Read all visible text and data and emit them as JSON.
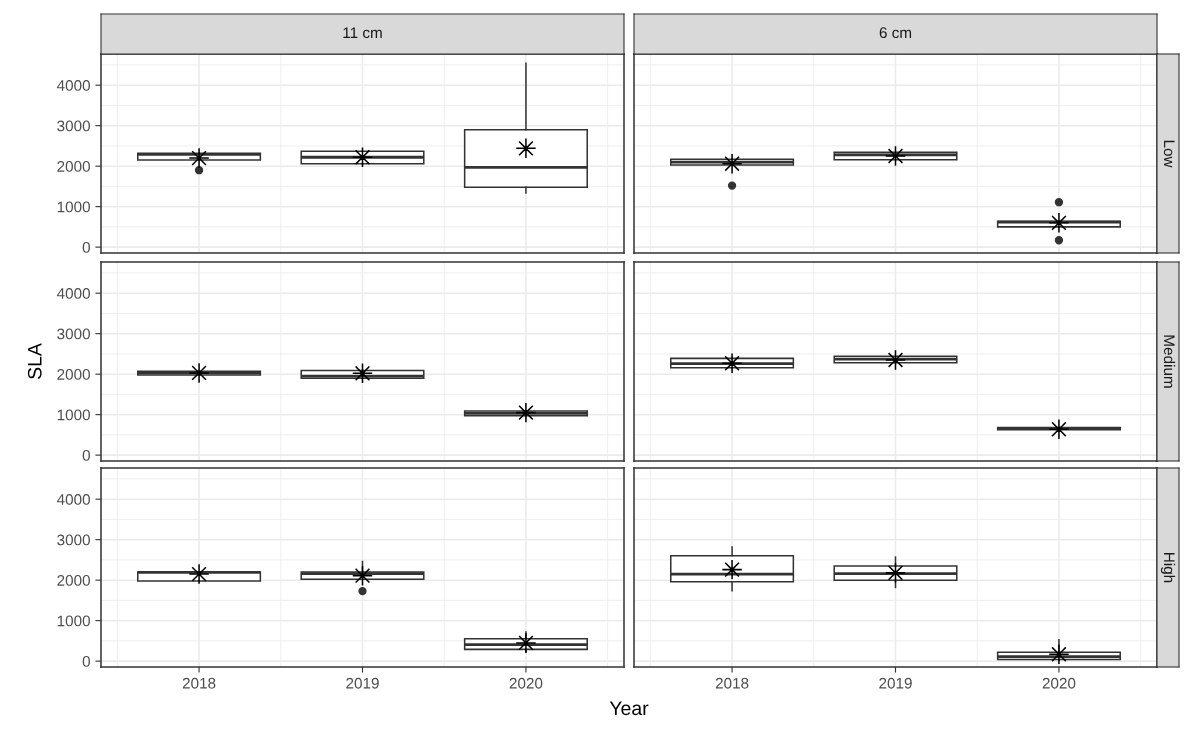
{
  "chart_data": [
    {
      "type": "box",
      "title": "11 cm",
      "categories": [
        "2018",
        "2019",
        "2020"
      ],
      "ylim": [
        -145,
        4770
      ],
      "yticks": [
        0,
        1000,
        2000,
        3000,
        4000
      ],
      "grid": true,
      "tick_labels": "y",
      "boxes": [
        {
          "low": 2150,
          "q1": 2150,
          "median": 2290,
          "q3": 2320,
          "high": 2320,
          "mean": 2200,
          "outliers": [
            1900
          ]
        },
        {
          "low": 2060,
          "q1": 2060,
          "median": 2220,
          "q3": 2370,
          "high": 2370,
          "mean": 2220
        },
        {
          "low": 1340,
          "q1": 1480,
          "median": 1970,
          "q3": 2900,
          "high": 4540,
          "mean": 2440
        }
      ]
    },
    {
      "type": "box",
      "title": "6 cm",
      "y2label": "Low",
      "categories": [
        "2018",
        "2019",
        "2020"
      ],
      "ylim": [
        -145,
        4770
      ],
      "yticks": [
        0,
        1000,
        2000,
        3000,
        4000
      ],
      "grid": true,
      "tick_labels": false,
      "boxes": [
        {
          "low": 2030,
          "q1": 2030,
          "median": 2100,
          "q3": 2170,
          "high": 2170,
          "mean": 2060,
          "outliers": [
            1520
          ]
        },
        {
          "low": 2160,
          "q1": 2160,
          "median": 2280,
          "q3": 2340,
          "high": 2340,
          "mean": 2250
        },
        {
          "low": 500,
          "q1": 500,
          "median": 620,
          "q3": 640,
          "high": 640,
          "mean": 600,
          "outliers": [
            1110,
            170
          ]
        }
      ]
    },
    {
      "type": "box",
      "ylabel": "SLA",
      "categories": [
        "2018",
        "2019",
        "2020"
      ],
      "ylim": [
        -145,
        4770
      ],
      "yticks": [
        0,
        1000,
        2000,
        3000,
        4000
      ],
      "grid": true,
      "tick_labels": "y",
      "boxes": [
        {
          "low": 1980,
          "q1": 1980,
          "median": 2030,
          "q3": 2070,
          "high": 2070,
          "mean": 2030
        },
        {
          "low": 1900,
          "q1": 1900,
          "median": 1950,
          "q3": 2090,
          "high": 2090,
          "mean": 2020
        },
        {
          "low": 970,
          "q1": 970,
          "median": 1030,
          "q3": 1090,
          "high": 1090,
          "mean": 1050
        }
      ]
    },
    {
      "type": "box",
      "y2label": "Medium",
      "categories": [
        "2018",
        "2019",
        "2020"
      ],
      "ylim": [
        -145,
        4770
      ],
      "yticks": [
        0,
        1000,
        2000,
        3000,
        4000
      ],
      "grid": true,
      "tick_labels": false,
      "boxes": [
        {
          "low": 2160,
          "q1": 2160,
          "median": 2260,
          "q3": 2390,
          "high": 2390,
          "mean": 2270
        },
        {
          "low": 2280,
          "q1": 2280,
          "median": 2370,
          "q3": 2440,
          "high": 2440,
          "mean": 2350
        },
        {
          "low": 630,
          "q1": 630,
          "median": 660,
          "q3": 680,
          "high": 680,
          "mean": 640
        }
      ]
    },
    {
      "type": "box",
      "xlabel": "Year",
      "categories": [
        "2018",
        "2019",
        "2020"
      ],
      "ylim": [
        -145,
        4770
      ],
      "yticks": [
        0,
        1000,
        2000,
        3000,
        4000
      ],
      "grid": true,
      "boxes": [
        {
          "low": 1980,
          "q1": 1980,
          "median": 2190,
          "q3": 2200,
          "high": 2200,
          "mean": 2150
        },
        {
          "low": 2020,
          "q1": 2020,
          "median": 2160,
          "q3": 2200,
          "high": 2460,
          "mean": 2110,
          "outliers": [
            1730
          ]
        },
        {
          "low": 220,
          "q1": 290,
          "median": 410,
          "q3": 550,
          "high": 720,
          "mean": 450
        }
      ]
    },
    {
      "type": "box",
      "y2label": "High",
      "categories": [
        "2018",
        "2019",
        "2020"
      ],
      "ylim": [
        -145,
        4770
      ],
      "yticks": [
        0,
        1000,
        2000,
        3000,
        4000
      ],
      "grid": true,
      "tick_labels": "x",
      "boxes": [
        {
          "low": 1740,
          "q1": 1960,
          "median": 2150,
          "q3": 2600,
          "high": 2820,
          "mean": 2260
        },
        {
          "low": 1820,
          "q1": 2000,
          "median": 2160,
          "q3": 2350,
          "high": 2570,
          "mean": 2180
        },
        {
          "low": 20,
          "q1": 40,
          "median": 110,
          "q3": 220,
          "high": 530,
          "mean": 170
        }
      ]
    }
  ]
}
